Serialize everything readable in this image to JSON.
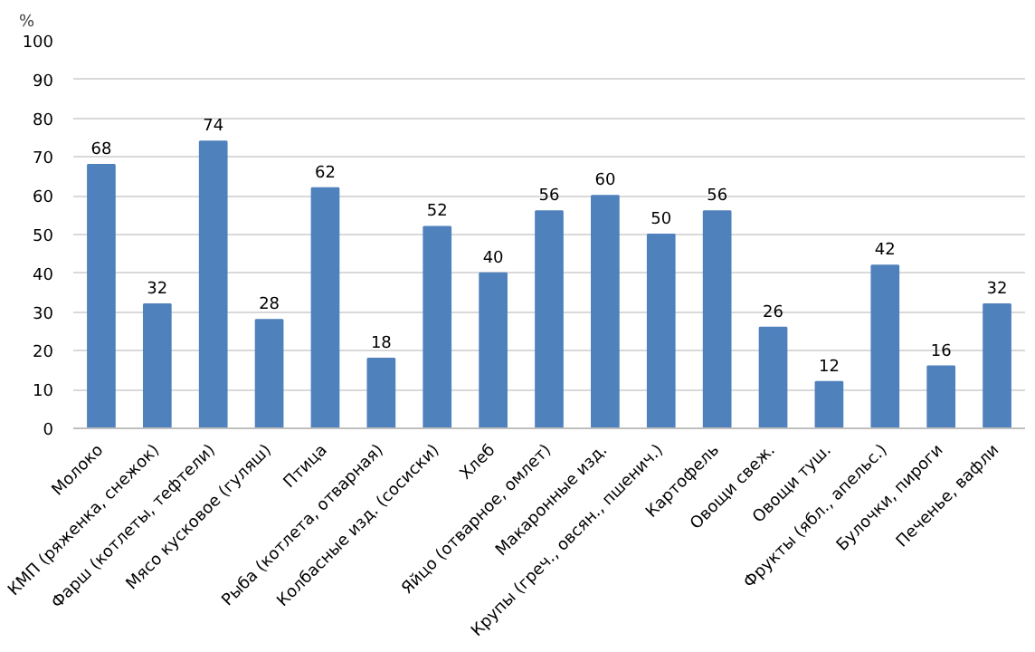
{
  "chart_data": {
    "type": "bar",
    "ylabel": "%",
    "categories": [
      "Молоко",
      "КМП (ряженка, снежок)",
      "Фарш (котлеты, тефтели)",
      "Мясо кусковое (гуляш)",
      "Птица",
      "Рыба (котлета, отварная)",
      "Колбасные изд. (сосиски)",
      "Хлеб",
      "Яйцо (отварное, омлет)",
      "Макаронные изд.",
      "Крупы (греч., овсян., пшенич.)",
      "Картофель",
      "Овощи свеж.",
      "Овощи туш.",
      "Фрукты (ябл., апельс.)",
      "Булочки, пироги",
      "Печенье, вафли"
    ],
    "values": [
      68,
      32,
      74,
      28,
      62,
      18,
      52,
      40,
      56,
      60,
      50,
      56,
      26,
      12,
      42,
      16,
      32
    ],
    "color": "#4f81bd",
    "data_labels": true,
    "ylim": [
      0,
      100
    ],
    "yticks": [
      0,
      10,
      20,
      30,
      40,
      50,
      60,
      70,
      80,
      90,
      100
    ],
    "grid": "y"
  }
}
